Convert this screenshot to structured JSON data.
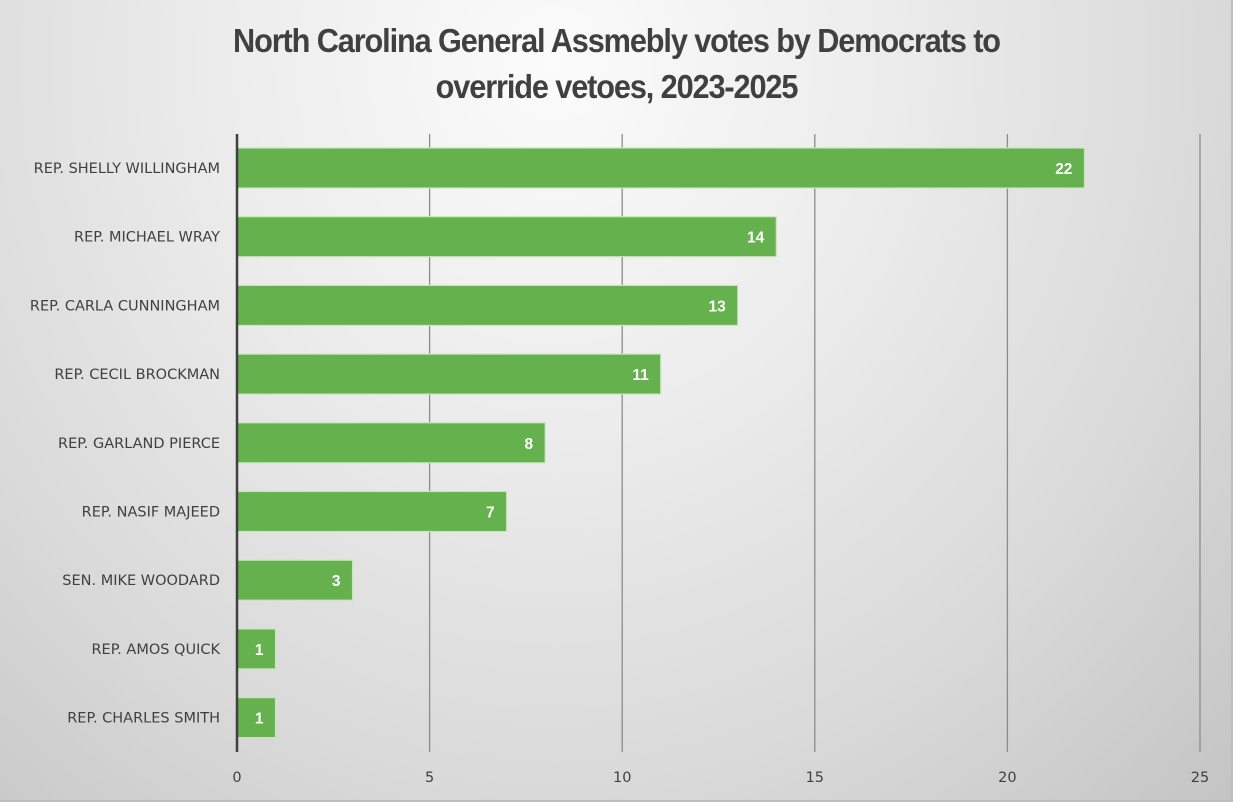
{
  "chart_data": {
    "type": "bar",
    "orientation": "horizontal",
    "title": "North Carolina General Assmebly votes by Democrats to override vetoes, 2023-2025",
    "title_lines": [
      "North Carolina General Assmebly votes by Democrats to",
      "override vetoes, 2023-2025"
    ],
    "xlabel": "",
    "ylabel": "",
    "categories": [
      "REP. SHELLY WILLINGHAM",
      "REP. MICHAEL WRAY",
      "REP. CARLA CUNNINGHAM",
      "REP. CECIL BROCKMAN",
      "REP. GARLAND PIERCE",
      "REP. NASIF MAJEED",
      "SEN. MIKE WOODARD",
      "REP. AMOS QUICK",
      "REP. CHARLES SMITH"
    ],
    "values": [
      22,
      14,
      13,
      11,
      8,
      7,
      3,
      1,
      1
    ],
    "xlim": [
      0,
      25
    ],
    "xticks": [
      0,
      5,
      10,
      15,
      20,
      25
    ],
    "grid": true,
    "data_labels": true,
    "legend": "none",
    "colors": {
      "bar": "#65b14d",
      "bar_border": "#c8e6bd",
      "axis": "#404040",
      "gridline": "#8c8c8c",
      "text": "#404040",
      "data_label": "#ffffff"
    }
  }
}
